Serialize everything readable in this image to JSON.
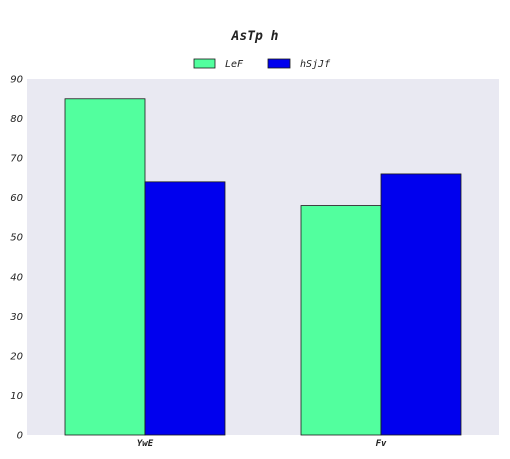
{
  "chart_data": {
    "type": "bar",
    "title": "AsTp h",
    "categories": [
      "YwE",
      "Fv"
    ],
    "series": [
      {
        "name": "LeF",
        "values": [
          85,
          58
        ]
      },
      {
        "name": "hSjJf",
        "values": [
          64,
          66
        ]
      }
    ],
    "ylim": [
      0,
      90
    ],
    "yticks": [
      0,
      10,
      20,
      30,
      40,
      50,
      60,
      70,
      80,
      90
    ],
    "xlabel": "",
    "ylabel": "",
    "grid": false,
    "legend_position": "top-center",
    "colors": {
      "LeF": "#52ff9e",
      "hSjJf": "#0000ee",
      "plot_background": "#e9e9f2",
      "bar_edge": "#1a1a1a"
    }
  }
}
